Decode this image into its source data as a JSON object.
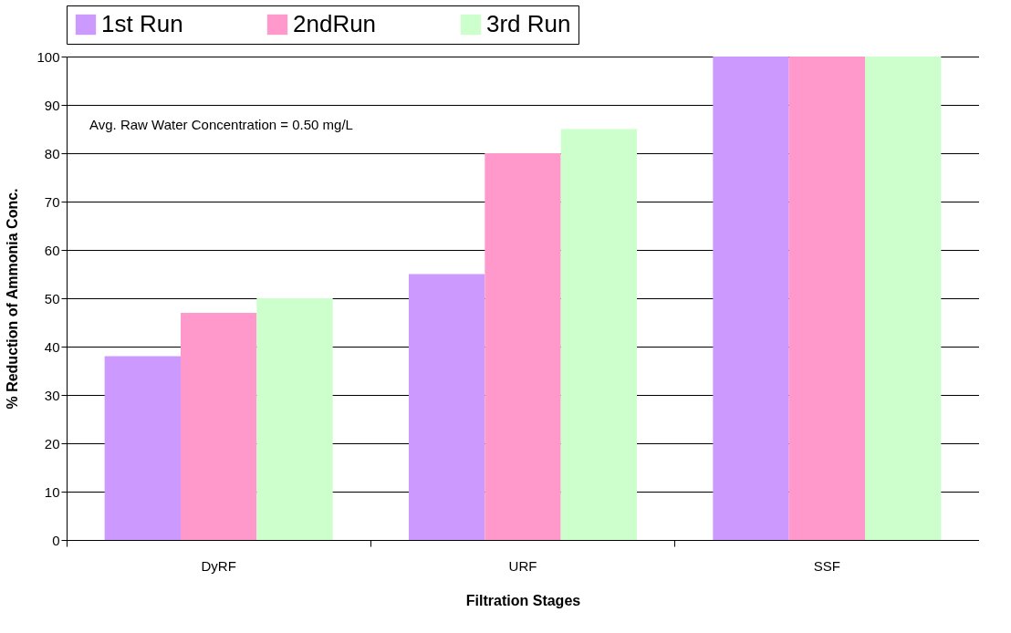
{
  "chart_data": {
    "type": "bar",
    "xlabel": "Filtration Stages",
    "ylabel": "% Reduction of Ammonia Conc.",
    "categories": [
      "DyRF",
      "URF",
      "SSF"
    ],
    "series": [
      {
        "name": "1st Run",
        "color": "#cc99ff",
        "values": [
          38,
          55,
          100
        ]
      },
      {
        "name": "2ndRun",
        "color": "#ff99cc",
        "values": [
          47,
          80,
          100
        ]
      },
      {
        "name": "3rd Run",
        "color": "#ccffcc",
        "values": [
          50,
          85,
          100
        ]
      }
    ],
    "ylim": [
      0,
      100
    ],
    "yticks": [
      0,
      10,
      20,
      30,
      40,
      50,
      60,
      70,
      80,
      90,
      100
    ],
    "grid": "y",
    "legend": "top",
    "annotations": [
      "Avg. Raw Water Concentration = 0.50 mg/L"
    ]
  }
}
